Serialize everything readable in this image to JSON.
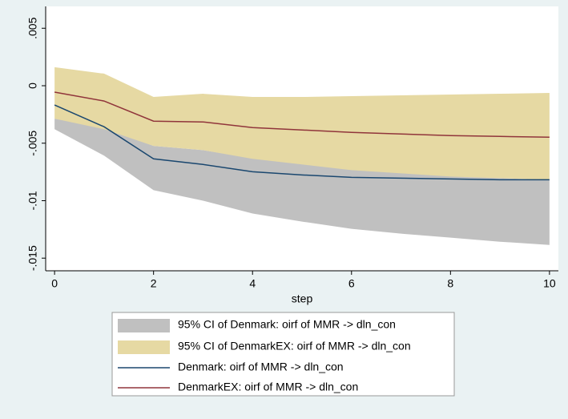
{
  "chart_data": {
    "type": "line",
    "xlabel": "step",
    "x": [
      0,
      1,
      2,
      3,
      4,
      5,
      6,
      7,
      8,
      9,
      10
    ],
    "xlim": [
      -0.18,
      10.18
    ],
    "xticks": [
      0,
      2,
      4,
      6,
      8,
      10
    ],
    "ylim": [
      -0.0161,
      0.0069
    ],
    "yticks": [
      {
        "value": -0.015,
        "label": "-.015"
      },
      {
        "value": -0.01,
        "label": "-.01"
      },
      {
        "value": -0.005,
        "label": "-.005"
      },
      0,
      {
        "value": 0.005,
        "label": ".005"
      }
    ],
    "series": [
      {
        "name": "95% CI of Denmark: oirf of MMR -> dln_con",
        "type": "band",
        "color": "#c0c0c0",
        "lower": [
          -0.00378,
          -0.00608,
          -0.00909,
          -0.01,
          -0.01112,
          -0.01182,
          -0.01245,
          -0.01287,
          -0.01322,
          -0.01357,
          -0.01385
        ],
        "upper": [
          -0.00287,
          -0.00364,
          -0.00524,
          -0.0056,
          -0.0063,
          -0.00678,
          -0.00727,
          -0.00755,
          -0.00783,
          -0.00804,
          -0.00818
        ]
      },
      {
        "name": "95% CI of DenmarkEX: oirf of MMR -> dln_con",
        "type": "band",
        "color": "#e6d9a3",
        "lower": [
          -0.00287,
          -0.00378,
          -0.00524,
          -0.0056,
          -0.00636,
          -0.00685,
          -0.00734,
          -0.00762,
          -0.0079,
          -0.00804,
          -0.00818
        ],
        "upper": [
          0.00161,
          0.00105,
          -0.00098,
          -0.0007,
          -0.00098,
          -0.00098,
          -0.00091,
          -0.00084,
          -0.00077,
          -0.0007,
          -0.00063
        ]
      },
      {
        "name": "Denmark: oirf of MMR -> dln_con",
        "type": "line",
        "color": "#1a476f",
        "values": [
          -0.00168,
          -0.00357,
          -0.00636,
          -0.00685,
          -0.00748,
          -0.00776,
          -0.00797,
          -0.00804,
          -0.00811,
          -0.00818,
          -0.00818
        ]
      },
      {
        "name": "DenmarkEX: oirf of MMR -> dln_con",
        "type": "line",
        "color": "#90353b",
        "values": [
          -0.00056,
          -0.00133,
          -0.00308,
          -0.00315,
          -0.00364,
          -0.00385,
          -0.00406,
          -0.0042,
          -0.00434,
          -0.00441,
          -0.00448
        ]
      }
    ]
  }
}
